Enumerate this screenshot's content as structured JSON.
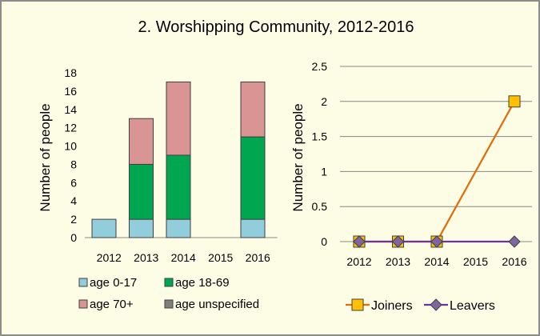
{
  "title": "2. Worshipping Community, 2012-2016",
  "chart_data": [
    {
      "type": "bar",
      "stacked": true,
      "categories": [
        "2012",
        "2013",
        "2014",
        "2015",
        "2016"
      ],
      "ylabel": "Number of people",
      "ylim": [
        0,
        18
      ],
      "yticks": [
        "0",
        "2",
        "4",
        "6",
        "8",
        "10",
        "12",
        "14",
        "16",
        "18"
      ],
      "grid": false,
      "legend_position": "bottom",
      "series": [
        {
          "name": "age 0-17",
          "color": "#92cddc",
          "values": [
            2,
            2,
            2,
            0,
            2
          ]
        },
        {
          "name": "age 18-69",
          "color": "#00a650",
          "values": [
            0,
            6,
            7,
            0,
            9
          ]
        },
        {
          "name": "age 70+",
          "color": "#d99594",
          "values": [
            0,
            5,
            8,
            0,
            6
          ]
        },
        {
          "name": "age unspecified",
          "color": "#7f7f7f",
          "values": [
            0,
            0,
            0,
            0,
            0
          ]
        }
      ]
    },
    {
      "type": "line",
      "x": [
        "2012",
        "2013",
        "2014",
        "2015",
        "2016"
      ],
      "ylabel": "Number of people",
      "ylim": [
        0,
        2.5
      ],
      "yticks": [
        "0",
        "0.5",
        "1",
        "1.5",
        "2",
        "2.5"
      ],
      "grid": true,
      "legend_position": "bottom",
      "series": [
        {
          "name": "Joiners",
          "color": "#e36c09",
          "marker": "square",
          "marker_fill": "#ffc000",
          "points": [
            [
              0,
              0
            ],
            [
              1,
              0
            ],
            [
              2,
              0
            ],
            [
              4,
              2
            ]
          ]
        },
        {
          "name": "Leavers",
          "color": "#7030a0",
          "marker": "diamond",
          "marker_fill": "#8064a2",
          "points": [
            [
              0,
              0
            ],
            [
              1,
              0
            ],
            [
              2,
              0
            ],
            [
              4,
              0
            ]
          ]
        }
      ]
    }
  ]
}
